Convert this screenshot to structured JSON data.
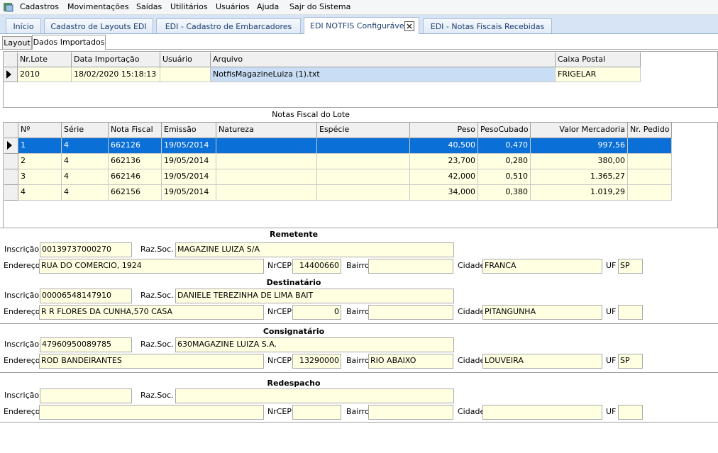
{
  "menu": [
    "Cadastros",
    "Movimentações",
    "Saídas",
    "Utilitários",
    "Usuários",
    "Ajuda",
    "Sajr do Sistema"
  ],
  "tabs": [
    "Início",
    "Cadastro de Layouts EDI",
    "EDI - Cadastro de Embarcadores",
    "EDI NOTFIS Configurável",
    "EDI - Notas Fiscais Recebidas"
  ],
  "subtabs": [
    "Layout",
    "Dados Importados"
  ],
  "lote_table": {
    "columns": [
      "Nr.Lote",
      "Data Importação",
      "Usuário",
      "Arquivo",
      "Caixa Postal"
    ],
    "rows": [
      [
        "2010",
        "18/02/2020 15:18:13",
        null,
        "NotfisMagazineLuiza (1).txt",
        "FRIGELAR"
      ]
    ]
  },
  "notas_title": "Notas Fiscal do Lote",
  "notas_table": {
    "columns": [
      "Nº",
      "Série",
      "Nota Fiscal",
      "Emissão",
      "Natureza",
      "Espécie",
      "Peso",
      "PesoCubado",
      "Valor Mercadoria",
      "Nr. Pedido"
    ],
    "rows": [
      [
        "1",
        "4",
        "662126",
        "19/05/2014",
        null,
        null,
        "40,500",
        "0,470",
        "997,56",
        null
      ],
      [
        "2",
        "4",
        "662136",
        "19/05/2014",
        null,
        null,
        "23,700",
        "0,280",
        "380,00",
        null
      ],
      [
        "3",
        "4",
        "662146",
        "19/05/2014",
        null,
        null,
        "42,000",
        "0,510",
        "1.365,27",
        null
      ],
      [
        "4",
        "4",
        "662156",
        "19/05/2014",
        null,
        null,
        "34,000",
        "0,380",
        "1.019,29",
        null
      ]
    ]
  },
  "field_labels": {
    "inscricao": "Inscrição",
    "raz_soc": "Raz.Soc.",
    "endereco": "Endereço",
    "nr_cep": "NrCEP",
    "bairro": "Bairro",
    "cidade": "Cidade",
    "uf": "UF"
  },
  "sections": [
    {
      "title": "Remetente",
      "inscricao": "00139737000270",
      "raz_soc": "MAGAZINE LUIZA S/A",
      "endereco": "RUA DO COMERCIO, 1924",
      "nr_cep": "14400660",
      "bairro": null,
      "cidade": "FRANCA",
      "uf": "SP"
    },
    {
      "title": "Destinatário",
      "inscricao": "00006548147910",
      "raz_soc": "DANIELE TEREZINHA DE LIMA BAIT",
      "endereco": "R  R FLORES DA CUNHA,570 CASA",
      "nr_cep": "0",
      "bairro": null,
      "cidade": "PITANGUNHA",
      "uf": null
    },
    {
      "title": "Consignatário",
      "inscricao": "47960950089785",
      "raz_soc": "630MAGAZINE LUIZA S.A.",
      "endereco": "ROD BANDEIRANTES",
      "nr_cep": "13290000",
      "bairro": "RIO ABAIXO",
      "cidade": "LOUVEIRA",
      "uf": "SP"
    },
    {
      "title": "Redespacho",
      "inscricao": null,
      "raz_soc": null,
      "endereco": null,
      "nr_cep": null,
      "bairro": null,
      "cidade": null,
      "uf": null
    }
  ]
}
